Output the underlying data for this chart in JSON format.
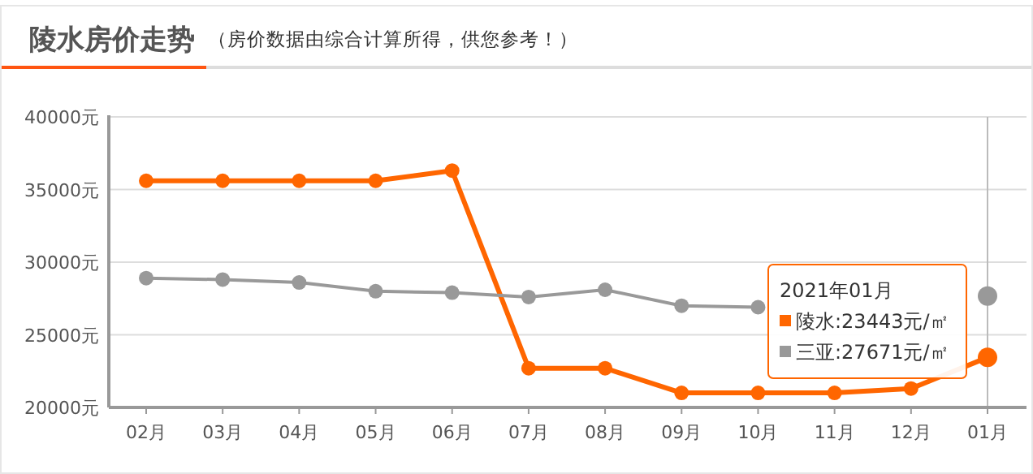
{
  "chart_data": {
    "type": "line",
    "title": "陵水房价走势",
    "subtitle": "（房价数据由综合计算所得，供您参考！）",
    "categories": [
      "02月",
      "03月",
      "04月",
      "05月",
      "06月",
      "07月",
      "08月",
      "09月",
      "10月",
      "11月",
      "12月",
      "01月"
    ],
    "series": [
      {
        "color": "#ff6600",
        "values": [
          35600,
          35600,
          35600,
          35600,
          36300,
          22700,
          22700,
          21000,
          21000,
          21000,
          21300,
          23443
        ]
      },
      {
        "color": "#999999",
        "values": [
          28900,
          28800,
          28600,
          28000,
          27900,
          27600,
          28100,
          27000,
          26900,
          null,
          null,
          27671
        ]
      }
    ],
    "annotations": [
      "2021年01月",
      "陵水:23443元/㎡",
      "三亚:27671元/㎡"
    ],
    "ref_lines": [
      {
        "axis": "x",
        "value": "01月",
        "color": "#bbbbbb"
      }
    ],
    "ylim": [
      20000,
      40000
    ],
    "yticks": [
      {
        "value": 20000,
        "label": "20000元"
      },
      {
        "value": 25000,
        "label": "25000元"
      },
      {
        "value": 30000,
        "label": "30000元"
      },
      {
        "value": 35000,
        "label": "35000元"
      },
      {
        "value": 40000,
        "label": "40000元"
      }
    ],
    "grid": "y",
    "marker": "circle",
    "line_style": "solid"
  }
}
